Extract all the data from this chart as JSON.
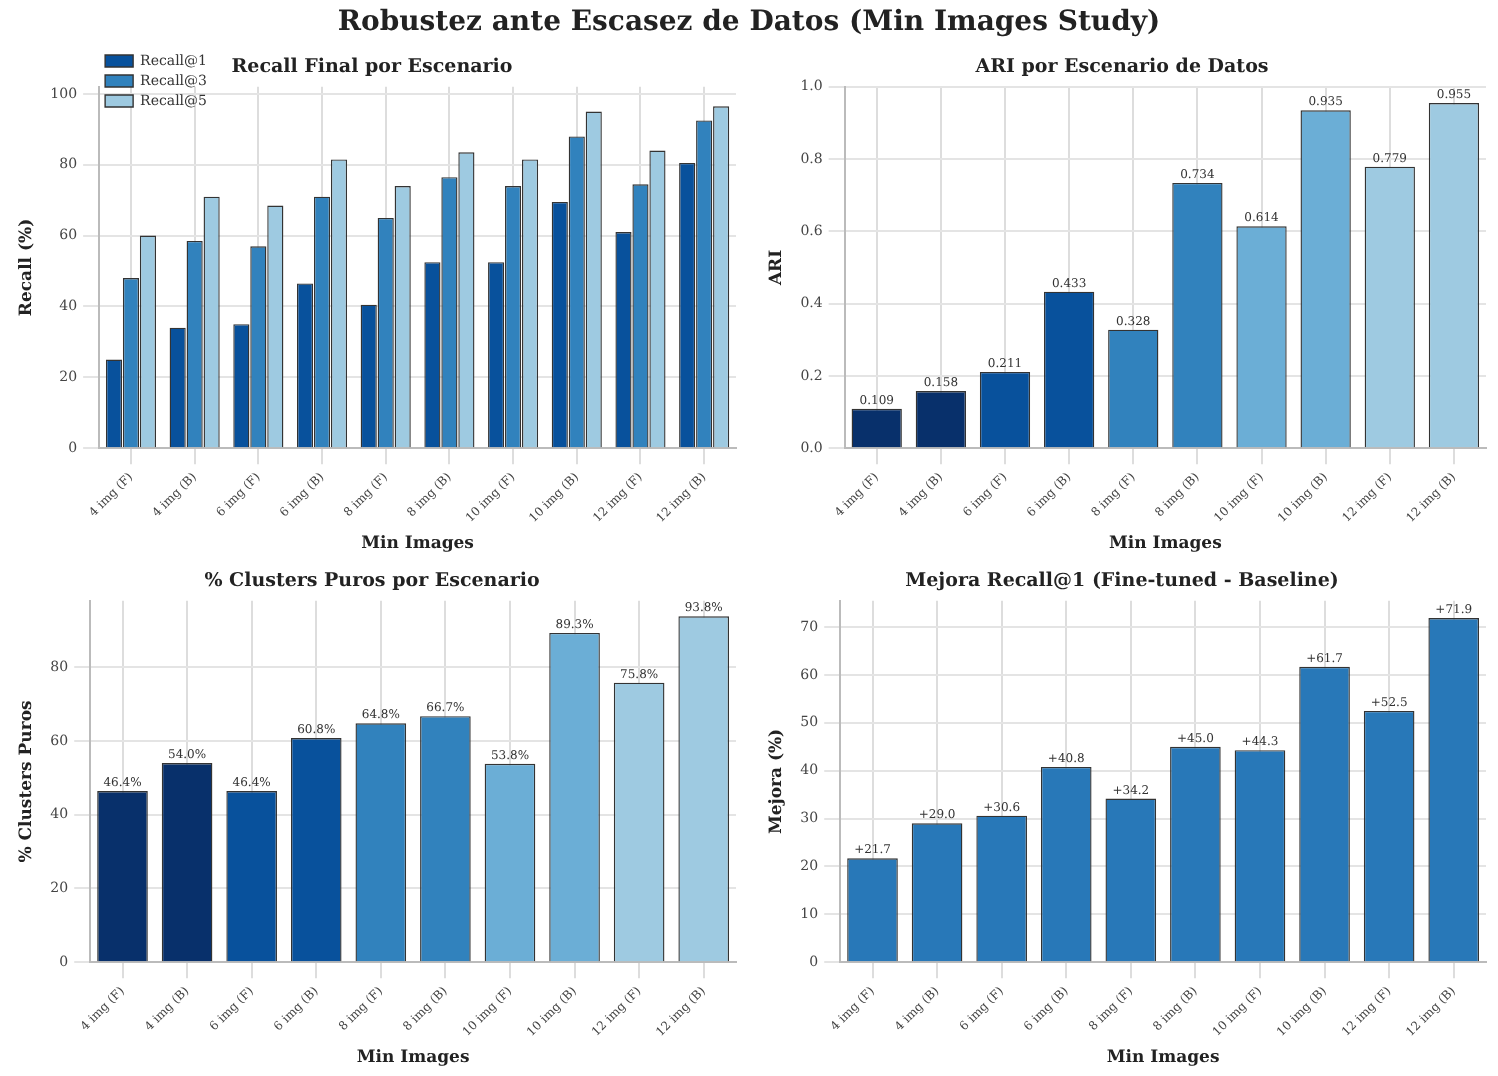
{
  "chart_data": [
    {
      "type": "bar",
      "title": "Recall Final por Escenario",
      "xlabel": "Min Images",
      "ylabel": "Recall (%)",
      "annotations": [
        "Robustez ante Escasez de Datos (Min Images Study)"
      ],
      "categories": [
        "4 img (F)",
        "4 img (B)",
        "6 img (F)",
        "6 img (B)",
        "8 img (F)",
        "8 img (B)",
        "10 img (F)",
        "10 img (B)",
        "12 img (F)",
        "12 img (B)"
      ],
      "series": [
        {
          "name": "Recall@1",
          "color": "#08519c",
          "values": [
            25,
            34,
            35,
            46.5,
            40.5,
            52.5,
            52.5,
            69.5,
            61,
            80.5
          ]
        },
        {
          "name": "Recall@3",
          "color": "#3182bd",
          "values": [
            48,
            58.5,
            57,
            71,
            65,
            76.5,
            74,
            88,
            74.5,
            92.5
          ]
        },
        {
          "name": "Recall@5",
          "color": "#9ecae1",
          "values": [
            60,
            71,
            68.5,
            81.5,
            74,
            83.5,
            81.5,
            95,
            84,
            96.5
          ]
        }
      ],
      "ylim": [
        0,
        102
      ],
      "yticks": [
        0,
        20,
        40,
        60,
        80,
        100
      ],
      "grid": true,
      "legend": "top left"
    },
    {
      "type": "bar",
      "title": "ARI por Escenario de Datos",
      "xlabel": "Min Images",
      "ylabel": "ARI",
      "categories": [
        "4 img (F)",
        "4 img (B)",
        "6 img (F)",
        "6 img (B)",
        "8 img (F)",
        "8 img (B)",
        "10 img (F)",
        "10 img (B)",
        "12 img (F)",
        "12 img (B)"
      ],
      "values": [
        0.109,
        0.158,
        0.211,
        0.433,
        0.328,
        0.734,
        0.614,
        0.935,
        0.779,
        0.955
      ],
      "colors": [
        "#08306b",
        "#08306b",
        "#08519c",
        "#08519c",
        "#3182bd",
        "#3182bd",
        "#6baed6",
        "#6baed6",
        "#9ecae1",
        "#9ecae1"
      ],
      "data_labels": true,
      "ylim": [
        0,
        1.0
      ],
      "yticks": [
        {
          "value": 0,
          "label": "0.0"
        },
        0.2,
        0.4,
        0.6,
        0.8,
        {
          "value": 1,
          "label": "1.0"
        }
      ],
      "grid": true
    },
    {
      "type": "bar",
      "title": "% Clusters Puros por Escenario",
      "xlabel": "Min Images",
      "ylabel": "% Clusters Puros",
      "categories": [
        "4 img (F)",
        "4 img (B)",
        "6 img (F)",
        "6 img (B)",
        "8 img (F)",
        "8 img (B)",
        "10 img (F)",
        "10 img (B)",
        "12 img (F)",
        "12 img (B)"
      ],
      "values": [
        46.4,
        54.0,
        46.4,
        60.8,
        64.8,
        66.7,
        53.8,
        89.3,
        75.8,
        93.8
      ],
      "value_labels": [
        "46.4%",
        "54.0%",
        "46.4%",
        "60.8%",
        "64.8%",
        "66.7%",
        "53.8%",
        "89.3%",
        "75.8%",
        "93.8%"
      ],
      "colors": [
        "#08306b",
        "#08306b",
        "#08519c",
        "#08519c",
        "#3182bd",
        "#3182bd",
        "#6baed6",
        "#6baed6",
        "#9ecae1",
        "#9ecae1"
      ],
      "ylim": [
        0,
        98
      ],
      "yticks": [
        0,
        20,
        40,
        60,
        80
      ],
      "grid": true
    },
    {
      "type": "bar",
      "title": "Mejora Recall@1 (Fine-tuned - Baseline)",
      "xlabel": "Min Images",
      "ylabel": "Mejora (%)",
      "categories": [
        "4 img (F)",
        "4 img (B)",
        "6 img (F)",
        "6 img (B)",
        "8 img (F)",
        "8 img (B)",
        "10 img (F)",
        "10 img (B)",
        "12 img (F)",
        "12 img (B)"
      ],
      "values": [
        21.7,
        29.0,
        30.6,
        40.8,
        34.2,
        45.0,
        44.3,
        61.7,
        52.5,
        71.9
      ],
      "value_labels": [
        "+21.7",
        "+29.0",
        "+30.6",
        "+40.8",
        "+34.2",
        "+45.0",
        "+44.3",
        "+61.7",
        "+52.5",
        "+71.9"
      ],
      "color": "#2878b8",
      "ylim": [
        0,
        75.5
      ],
      "yticks": [
        0,
        10,
        20,
        30,
        40,
        50,
        60,
        70
      ],
      "grid": true
    }
  ]
}
